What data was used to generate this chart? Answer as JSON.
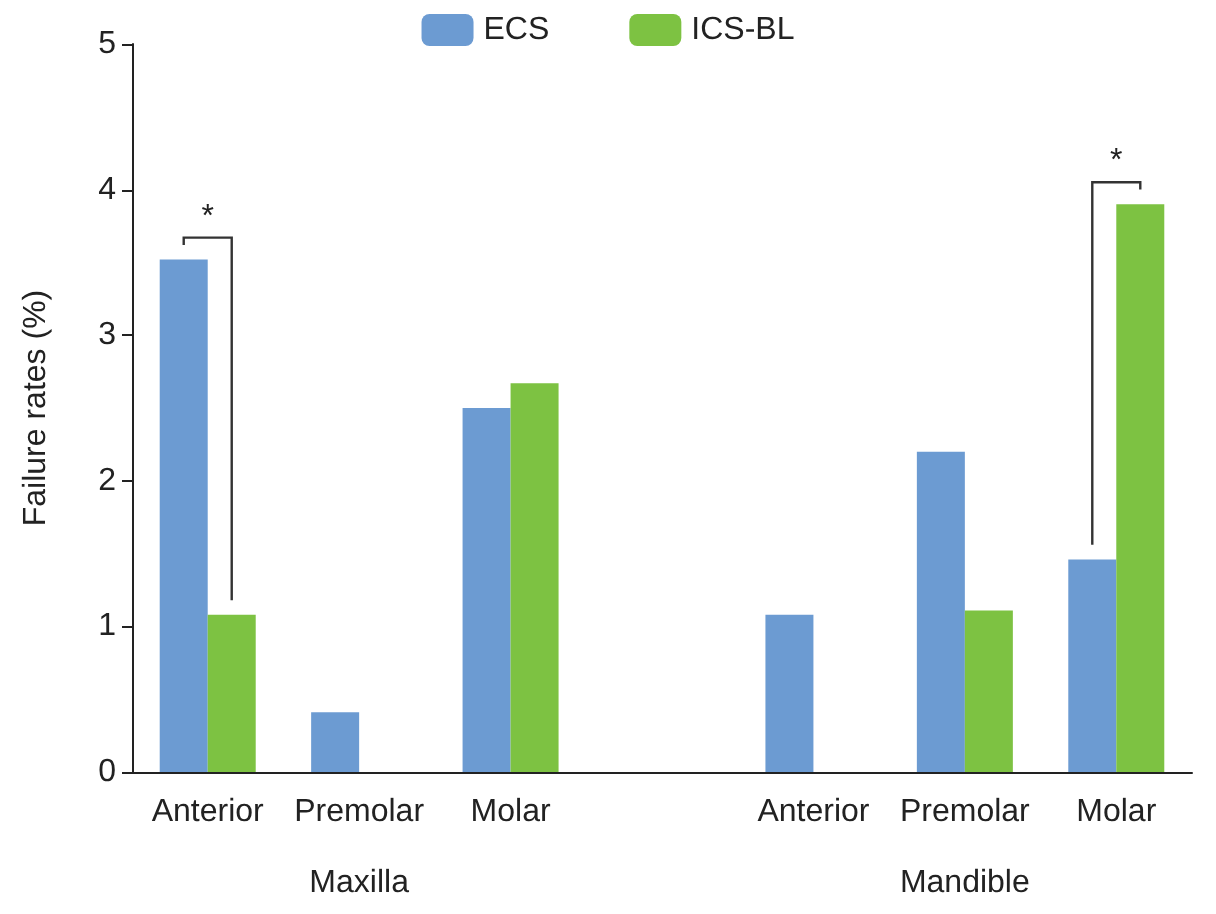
{
  "chart_data": {
    "type": "bar",
    "ylabel": "Failure rates (%)",
    "categories": [
      "Anterior",
      "Premolar",
      "Molar",
      null,
      "Anterior",
      "Premolar",
      "Molar"
    ],
    "series": [
      {
        "name": "ECS",
        "color": "#6c9bd2",
        "values": [
          3.52,
          0.41,
          2.5,
          null,
          1.08,
          2.2,
          1.46
        ]
      },
      {
        "name": "ICS-BL",
        "color": "#7dc242",
        "values": [
          1.08,
          null,
          2.67,
          null,
          null,
          1.11,
          3.9
        ]
      }
    ],
    "ylim": [
      0,
      5
    ],
    "yticks": [
      0,
      1,
      2,
      3,
      4,
      5
    ],
    "grid": false,
    "legend": "top",
    "annotations": [
      "Maxilla",
      "Mandible",
      "*",
      "*"
    ]
  }
}
